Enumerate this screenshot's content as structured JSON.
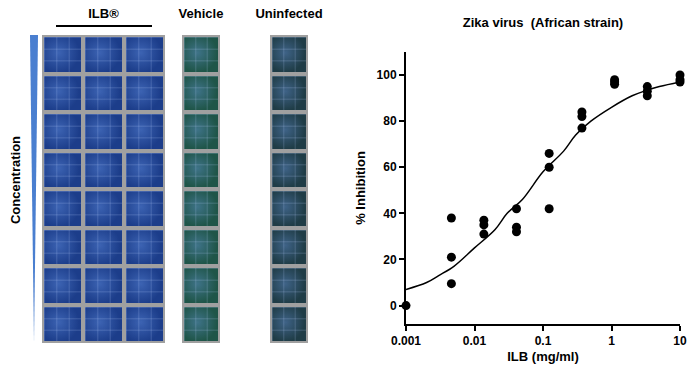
{
  "chart_data": {
    "type": "scatter",
    "title": "Zika virus  (African strain)",
    "x_label": "ILB (mg/ml)",
    "y_label": "% Inhibition",
    "log": "x",
    "xlim": [
      0.001,
      10
    ],
    "xticks": [
      0.001,
      0.01,
      0.1,
      1,
      10
    ],
    "ylim": [
      -8,
      110
    ],
    "yticks": [
      0,
      20,
      40,
      60,
      80,
      100
    ],
    "grid": false,
    "series": [
      {
        "type": "scatter",
        "marker": "circle",
        "color": "#000000",
        "x": [
          0.001,
          0.0046,
          0.0046,
          0.0046,
          0.0137,
          0.0137,
          0.0137,
          0.041,
          0.041,
          0.041,
          0.123,
          0.123,
          0.123,
          0.37,
          0.37,
          0.37,
          1.11,
          1.11,
          1.11,
          3.33,
          3.33,
          3.33,
          10,
          10,
          10
        ],
        "values": [
          0,
          38,
          21,
          9.5,
          37,
          35,
          31,
          42,
          34,
          32,
          66,
          60,
          42,
          84,
          82,
          77,
          98,
          97,
          96,
          95,
          93,
          91,
          100,
          98,
          97
        ]
      },
      {
        "type": "line",
        "line_style": "solid",
        "color": "#000000",
        "x": [
          0.001,
          0.002,
          0.003,
          0.005,
          0.01,
          0.02,
          0.03,
          0.05,
          0.1,
          0.2,
          0.3,
          0.5,
          1,
          2,
          3,
          5,
          10
        ],
        "values": [
          7,
          10,
          13,
          17,
          25,
          33,
          40,
          46,
          58,
          67,
          74,
          80,
          86,
          91,
          93,
          95,
          97
        ]
      }
    ]
  },
  "image_panel": {
    "column_labels": [
      "ILB®",
      "Vehicle",
      "Uninfected"
    ],
    "row_label": "Concentration",
    "ILB_columns": 3,
    "rows": 8
  }
}
